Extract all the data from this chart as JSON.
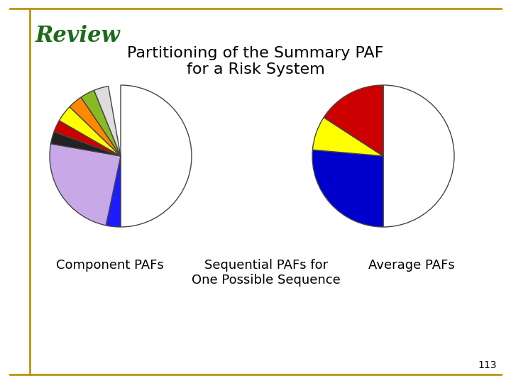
{
  "title": "Partitioning of the Summary PAF\nfor a Risk System",
  "header": "Review",
  "header_color": "#1a6b1a",
  "bg_color": "#ffffff",
  "border_color": "#b8960c",
  "page_number": "113",
  "left_pie_label": "Component PAFs",
  "center_label": "Sequential PAFs for\nOne Possible Sequence",
  "right_pie_label": "Average PAFs",
  "left_pie": {
    "slices_deg": [
      180,
      12,
      88,
      10,
      10,
      14,
      12,
      12,
      12
    ],
    "colors": [
      "#ffffff",
      "#1c1cff",
      "#c9a8e8",
      "#222222",
      "#cc0000",
      "#ffff00",
      "#ff8800",
      "#88bb22",
      "#dddddd"
    ],
    "start_angle": 90
  },
  "right_pie": {
    "slices_deg": [
      180,
      95,
      28,
      57
    ],
    "colors": [
      "#ffffff",
      "#0000cc",
      "#ffff00",
      "#cc0000"
    ],
    "start_angle": 90
  }
}
